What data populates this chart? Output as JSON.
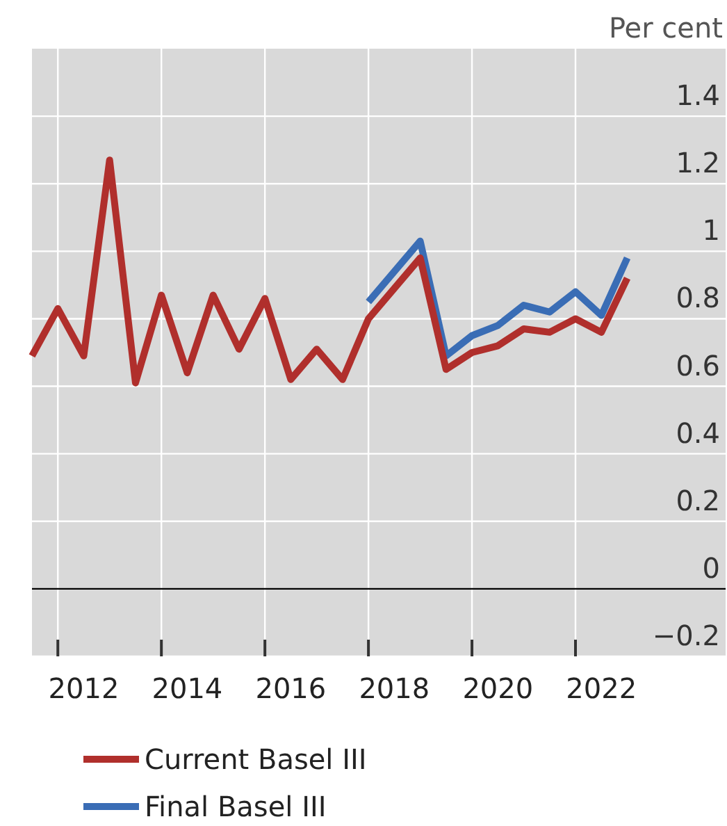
{
  "chart_data": {
    "type": "line",
    "ylabel": "Per cent",
    "x": [
      2011.5,
      2012,
      2012.5,
      2013,
      2013.5,
      2014,
      2014.5,
      2015,
      2015.5,
      2016,
      2016.5,
      2017,
      2017.5,
      2018,
      2018.5,
      2019,
      2019.5,
      2020,
      2020.5,
      2021,
      2021.5,
      2022,
      2022.5,
      2023
    ],
    "series": [
      {
        "name": "Current Basel III",
        "color": "#b02f2c",
        "values": [
          0.69,
          0.83,
          0.69,
          1.27,
          0.61,
          0.87,
          0.64,
          0.87,
          0.71,
          0.86,
          0.62,
          0.71,
          0.62,
          0.8,
          0.89,
          0.98,
          0.65,
          0.7,
          0.72,
          0.77,
          0.76,
          0.8,
          0.76,
          0.92
        ]
      },
      {
        "name": "Final Basel III",
        "color": "#3a6db5",
        "values": [
          null,
          null,
          null,
          null,
          null,
          null,
          null,
          null,
          null,
          null,
          null,
          null,
          null,
          0.85,
          0.94,
          1.03,
          0.69,
          0.75,
          0.78,
          0.84,
          0.82,
          0.88,
          0.81,
          0.98
        ]
      }
    ],
    "xlim": [
      2011.5,
      2024.9
    ],
    "xticks": [
      {
        "value": 2012,
        "label": null
      },
      {
        "value": 2012.5,
        "label": "2012"
      },
      {
        "value": 2014,
        "label": null
      },
      {
        "value": 2014.5,
        "label": "2014"
      },
      {
        "value": 2016,
        "label": null
      },
      {
        "value": 2016.5,
        "label": "2016"
      },
      {
        "value": 2018,
        "label": null
      },
      {
        "value": 2018.5,
        "label": "2018"
      },
      {
        "value": 2020,
        "label": null
      },
      {
        "value": 2020.5,
        "label": "2020"
      },
      {
        "value": 2022,
        "label": null
      },
      {
        "value": 2022.5,
        "label": "2022"
      }
    ],
    "ylim": [
      -0.2,
      1.6
    ],
    "yticks": [
      {
        "value": -0.2,
        "label": "−0.2"
      },
      0,
      0.2,
      0.4,
      0.6,
      0.8,
      1,
      1.2,
      1.4
    ],
    "ref_lines": [
      {
        "axis": "y",
        "value": 0,
        "color": "#000000"
      }
    ],
    "grid": true,
    "legend": "bottom",
    "line_style": "solid",
    "marker": "none"
  }
}
